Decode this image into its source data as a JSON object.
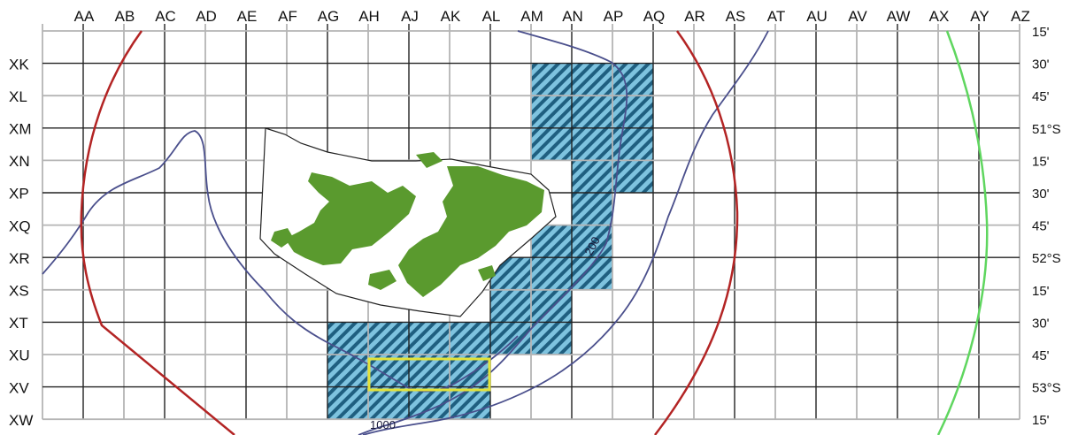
{
  "map": {
    "columns": [
      "AA",
      "AB",
      "AC",
      "AD",
      "AE",
      "AF",
      "AG",
      "AH",
      "AJ",
      "AK",
      "AL",
      "AM",
      "AN",
      "AP",
      "AQ",
      "AR",
      "AS",
      "AT",
      "AU",
      "AV",
      "AW",
      "AX",
      "AY",
      "AZ"
    ],
    "rows": [
      "XK",
      "XL",
      "XM",
      "XN",
      "XP",
      "XQ",
      "XR",
      "XS",
      "XT",
      "XU",
      "XV",
      "XW"
    ],
    "latitude_labels": [
      "15'",
      "30'",
      "45'",
      "51°S",
      "15'",
      "30'",
      "45'",
      "52°S",
      "15'",
      "30'",
      "45'",
      "53°S",
      "15'"
    ],
    "contour_labels": {
      "c200": "200",
      "c1000": "1000"
    },
    "hatched_cells": [
      [
        "AN",
        "XL"
      ],
      [
        "AP",
        "XL"
      ],
      [
        "AQ",
        "XL"
      ],
      [
        "AN",
        "XM"
      ],
      [
        "AP",
        "XM"
      ],
      [
        "AQ",
        "XM"
      ],
      [
        "AN",
        "XN"
      ],
      [
        "AP",
        "XN"
      ],
      [
        "AQ",
        "XN"
      ],
      [
        "AP",
        "XP"
      ],
      [
        "AQ",
        "XP"
      ],
      [
        "AP",
        "XQ"
      ],
      [
        "AN",
        "XR"
      ],
      [
        "AP",
        "XR"
      ],
      [
        "AM",
        "XS"
      ],
      [
        "AN",
        "XS"
      ],
      [
        "AP",
        "XS"
      ],
      [
        "AM",
        "XT"
      ],
      [
        "AN",
        "XT"
      ],
      [
        "AH",
        "XU"
      ],
      [
        "AJ",
        "XU"
      ],
      [
        "AK",
        "XU"
      ],
      [
        "AL",
        "XU"
      ],
      [
        "AM",
        "XU"
      ],
      [
        "AN",
        "XU"
      ],
      [
        "AH",
        "XV"
      ],
      [
        "AJ",
        "XV"
      ],
      [
        "AK",
        "XV"
      ],
      [
        "AL",
        "XV"
      ],
      [
        "AH",
        "XW"
      ],
      [
        "AJ",
        "XW"
      ],
      [
        "AK",
        "XW"
      ],
      [
        "AL",
        "XW"
      ]
    ],
    "highlighted_cells": [
      [
        "AJ",
        "XV"
      ],
      [
        "AK",
        "XV"
      ],
      [
        "AL",
        "XV"
      ]
    ],
    "colors": {
      "grid_major": "#222222",
      "grid_minor": "#b5b5b5",
      "hatch_fill": "#7ec3df",
      "hatch_stripe": "#1f5f80",
      "land": "#5a9a2e",
      "contour": "#4a4f8c",
      "red_boundary": "#b32424",
      "green_boundary": "#5fd65f",
      "highlight_box": "#e2e23a"
    }
  }
}
